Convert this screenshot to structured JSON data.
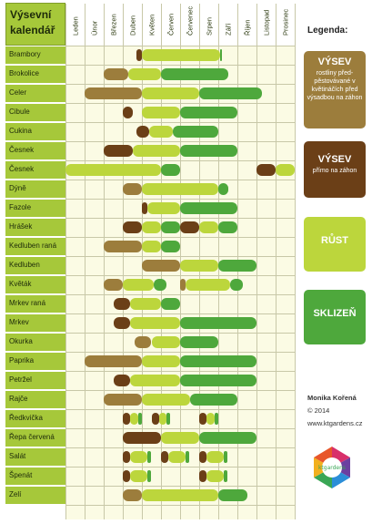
{
  "title": {
    "line1": "Výsevní",
    "line2": "kalendář"
  },
  "months": [
    "Leden",
    "Únor",
    "Březen",
    "Duben",
    "Květen",
    "Červen",
    "Červenec",
    "Srpen",
    "Září",
    "Říjen",
    "Listopad",
    "Prosinec"
  ],
  "colors": {
    "sow_indoor": "#9c7d3c",
    "sow_direct": "#6b3f17",
    "growth": "#bcd63c",
    "harvest": "#4ea83c",
    "row_label_bg": "#a6c83a"
  },
  "legend": {
    "title": "Legenda:",
    "items": [
      {
        "key": "sow_indoor",
        "heading": "VÝSEV",
        "desc": "rostliny před-pěstovávané v květináčích před výsadbou na záhon"
      },
      {
        "key": "sow_direct",
        "heading": "VÝSEV",
        "desc": "přímo na záhon"
      },
      {
        "key": "growth",
        "heading": "RŮST",
        "desc": ""
      },
      {
        "key": "harvest",
        "heading": "SKLIZEŇ",
        "desc": ""
      }
    ]
  },
  "credits": {
    "author": "Monika Kořená",
    "year": "© 2014",
    "url": "www.ktgardens.cz"
  },
  "logo_text": "ktgardens",
  "rows": [
    {
      "name": "Brambory",
      "segments": [
        [
          "sow_direct",
          3.7,
          4.0
        ],
        [
          "growth",
          4.0,
          8.1
        ],
        [
          "harvest",
          8.1,
          8.2
        ]
      ]
    },
    {
      "name": "Brokolice",
      "segments": [
        [
          "sow_indoor",
          2.0,
          3.3
        ],
        [
          "growth",
          3.3,
          5.0
        ],
        [
          "harvest",
          5.0,
          8.5
        ]
      ]
    },
    {
      "name": "Celer",
      "segments": [
        [
          "sow_indoor",
          1.0,
          4.0
        ],
        [
          "growth",
          4.0,
          7.0
        ],
        [
          "harvest",
          7.0,
          10.3
        ]
      ]
    },
    {
      "name": "Cibule",
      "segments": [
        [
          "sow_direct",
          3.0,
          3.5
        ],
        [
          "growth",
          4.0,
          6.0
        ],
        [
          "harvest",
          6.0,
          9.0
        ]
      ]
    },
    {
      "name": "Cukina",
      "segments": [
        [
          "sow_direct",
          3.7,
          4.4
        ],
        [
          "growth",
          4.4,
          5.6
        ],
        [
          "harvest",
          5.6,
          8.0
        ]
      ]
    },
    {
      "name": "Česnek",
      "segments": [
        [
          "sow_direct",
          2.0,
          3.5
        ],
        [
          "growth",
          3.5,
          6.0
        ],
        [
          "harvest",
          6.0,
          9.0
        ]
      ]
    },
    {
      "name": "Česnek",
      "segments": [
        [
          "growth",
          0.0,
          5.0
        ],
        [
          "harvest",
          5.0,
          6.0
        ],
        [
          "sow_direct",
          10.0,
          11.0
        ],
        [
          "growth",
          11.0,
          12.0
        ]
      ]
    },
    {
      "name": "Dýně",
      "segments": [
        [
          "sow_indoor",
          3.0,
          4.0
        ],
        [
          "growth",
          4.0,
          8.0
        ],
        [
          "harvest",
          8.0,
          8.5
        ]
      ]
    },
    {
      "name": "Fazole",
      "segments": [
        [
          "sow_direct",
          4.0,
          4.3
        ],
        [
          "growth",
          4.3,
          6.0
        ],
        [
          "harvest",
          6.0,
          9.0
        ]
      ]
    },
    {
      "name": "Hrášek",
      "segments": [
        [
          "sow_direct",
          3.0,
          4.0
        ],
        [
          "growth",
          4.0,
          5.0
        ],
        [
          "harvest",
          5.0,
          6.0
        ],
        [
          "sow_direct",
          6.0,
          7.0
        ],
        [
          "growth",
          7.0,
          8.0
        ],
        [
          "harvest",
          8.0,
          9.0
        ]
      ]
    },
    {
      "name": "Kedluben raná",
      "segments": [
        [
          "sow_indoor",
          2.0,
          4.0
        ],
        [
          "growth",
          4.0,
          5.0
        ],
        [
          "harvest",
          5.0,
          6.0
        ]
      ]
    },
    {
      "name": "Kedluben",
      "segments": [
        [
          "sow_indoor",
          4.0,
          6.0
        ],
        [
          "growth",
          6.0,
          8.0
        ],
        [
          "harvest",
          8.0,
          10.0
        ]
      ]
    },
    {
      "name": "Květák",
      "segments": [
        [
          "sow_indoor",
          2.0,
          3.0
        ],
        [
          "growth",
          3.0,
          4.6
        ],
        [
          "harvest",
          4.6,
          5.3
        ],
        [
          "sow_indoor",
          6.0,
          6.3
        ],
        [
          "growth",
          6.3,
          8.6
        ],
        [
          "harvest",
          8.6,
          9.3
        ]
      ]
    },
    {
      "name": "Mrkev raná",
      "segments": [
        [
          "sow_direct",
          2.5,
          3.4
        ],
        [
          "growth",
          3.4,
          5.0
        ],
        [
          "harvest",
          5.0,
          6.0
        ]
      ]
    },
    {
      "name": "Mrkev",
      "segments": [
        [
          "sow_direct",
          2.5,
          3.4
        ],
        [
          "growth",
          3.4,
          6.0
        ],
        [
          "harvest",
          6.0,
          10.0
        ]
      ]
    },
    {
      "name": "Okurka",
      "segments": [
        [
          "sow_indoor",
          3.6,
          4.5
        ],
        [
          "growth",
          4.5,
          6.0
        ],
        [
          "harvest",
          6.0,
          8.0
        ]
      ]
    },
    {
      "name": "Paprika",
      "segments": [
        [
          "sow_indoor",
          1.0,
          4.0
        ],
        [
          "growth",
          4.0,
          6.0
        ],
        [
          "harvest",
          6.0,
          10.0
        ]
      ]
    },
    {
      "name": "Petržel",
      "segments": [
        [
          "sow_direct",
          2.5,
          3.4
        ],
        [
          "growth",
          3.4,
          6.0
        ],
        [
          "harvest",
          6.0,
          10.0
        ]
      ]
    },
    {
      "name": "Rajče",
      "segments": [
        [
          "sow_indoor",
          2.0,
          4.0
        ],
        [
          "growth",
          4.0,
          6.5
        ],
        [
          "harvest",
          6.5,
          9.0
        ]
      ]
    },
    {
      "name": "Ředkvička",
      "segments": [
        [
          "sow_direct",
          3.0,
          3.4
        ],
        [
          "growth",
          3.4,
          3.8
        ],
        [
          "harvest",
          3.8,
          4.0
        ],
        [
          "sow_direct",
          4.5,
          4.9
        ],
        [
          "growth",
          4.9,
          5.3
        ],
        [
          "harvest",
          5.3,
          5.5
        ],
        [
          "sow_direct",
          7.0,
          7.4
        ],
        [
          "growth",
          7.4,
          7.8
        ],
        [
          "harvest",
          7.8,
          8.0
        ]
      ]
    },
    {
      "name": "Řepa červená",
      "segments": [
        [
          "sow_direct",
          3.0,
          5.0
        ],
        [
          "growth",
          5.0,
          7.0
        ],
        [
          "harvest",
          7.0,
          10.0
        ]
      ]
    },
    {
      "name": "Salát",
      "segments": [
        [
          "sow_direct",
          3.0,
          3.4
        ],
        [
          "growth",
          3.4,
          4.3
        ],
        [
          "harvest",
          4.3,
          4.5
        ],
        [
          "sow_direct",
          5.0,
          5.4
        ],
        [
          "growth",
          5.4,
          6.3
        ],
        [
          "harvest",
          6.3,
          6.5
        ],
        [
          "sow_direct",
          7.0,
          7.4
        ],
        [
          "growth",
          7.4,
          8.3
        ],
        [
          "harvest",
          8.3,
          8.5
        ]
      ]
    },
    {
      "name": "Špenát",
      "segments": [
        [
          "sow_direct",
          3.0,
          3.4
        ],
        [
          "growth",
          3.4,
          4.3
        ],
        [
          "harvest",
          4.3,
          4.5
        ],
        [
          "sow_direct",
          7.0,
          7.4
        ],
        [
          "growth",
          7.4,
          8.3
        ],
        [
          "harvest",
          8.3,
          8.5
        ]
      ]
    },
    {
      "name": "Zelí",
      "segments": [
        [
          "sow_indoor",
          3.0,
          4.0
        ],
        [
          "growth",
          4.0,
          8.0
        ],
        [
          "harvest",
          8.0,
          9.5
        ]
      ]
    }
  ]
}
